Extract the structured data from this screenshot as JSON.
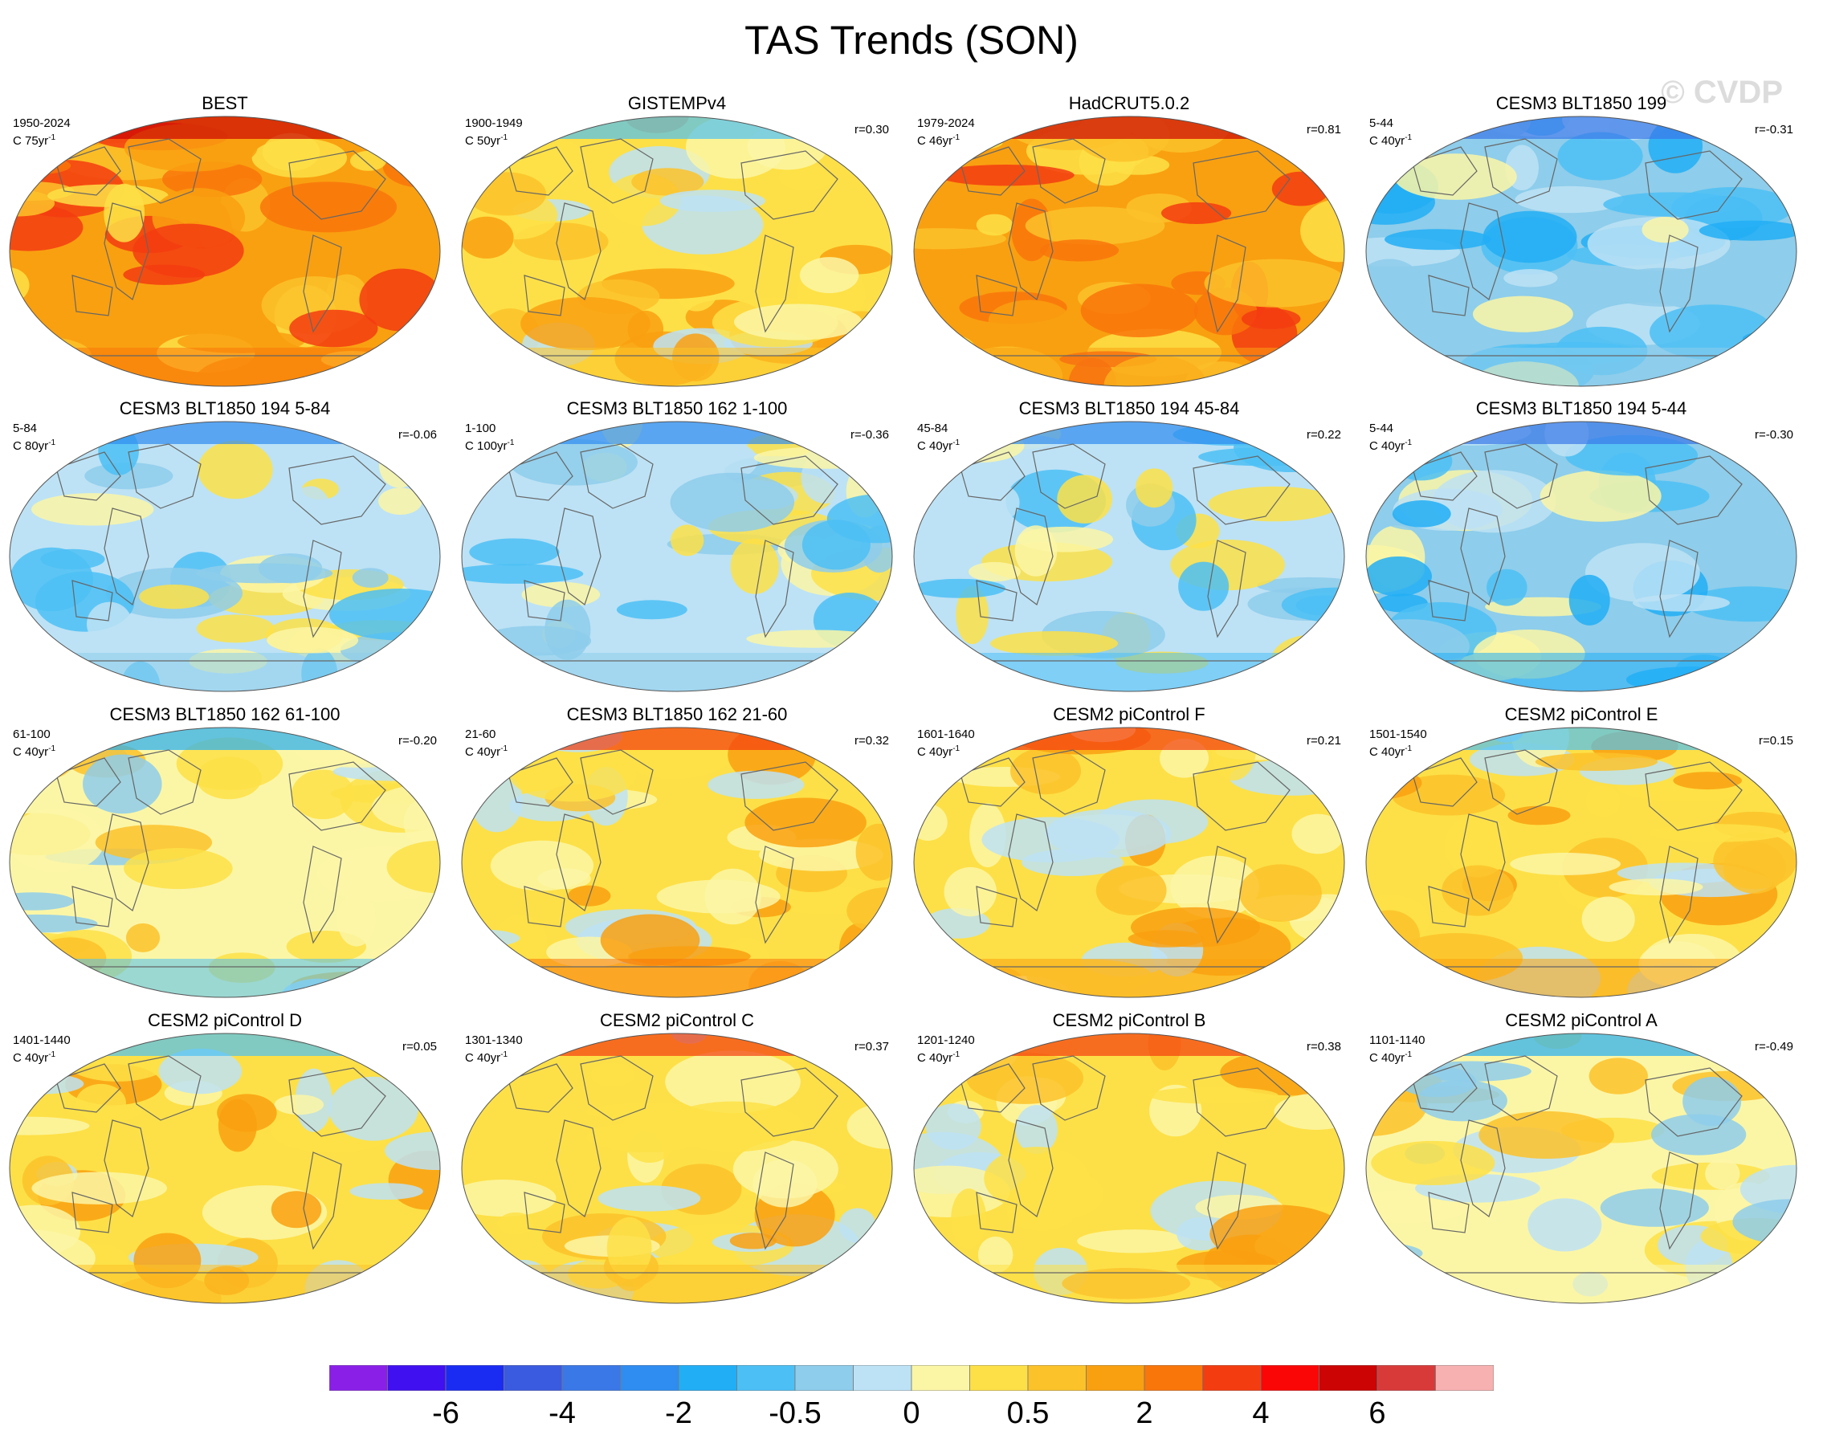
{
  "title": "TAS Trends (SON)",
  "watermark": "© CVDP",
  "panels": [
    {
      "title": "BEST",
      "period": "1950-2024",
      "units_prefix": "C 75yr",
      "units_sup": "-1",
      "corr": "",
      "warm": 0.9
    },
    {
      "title": "GISTEMPv4",
      "period": "1900-1949",
      "units_prefix": "C 50yr",
      "units_sup": "-1",
      "corr": "r=0.30",
      "warm": 0.5
    },
    {
      "title": "HadCRUT5.0.2",
      "period": "1979-2024",
      "units_prefix": "C 46yr",
      "units_sup": "-1",
      "corr": "r=0.81",
      "warm": 0.85
    },
    {
      "title": "CESM3 BLT1850 199",
      "period": "5-44",
      "units_prefix": "C 40yr",
      "units_sup": "-1",
      "corr": "r=-0.31",
      "warm": 0.15
    },
    {
      "title": "CESM3 BLT1850 194 5-84",
      "period": "5-84",
      "units_prefix": "C 80yr",
      "units_sup": "-1",
      "corr": "r=-0.06",
      "warm": 0.25
    },
    {
      "title": "CESM3 BLT1850 162 1-100",
      "period": "1-100",
      "units_prefix": "C 100yr",
      "units_sup": "-1",
      "corr": "r=-0.36",
      "warm": 0.3
    },
    {
      "title": "CESM3 BLT1850 194 45-84",
      "period": "45-84",
      "units_prefix": "C 40yr",
      "units_sup": "-1",
      "corr": "r=0.22",
      "warm": 0.3
    },
    {
      "title": "CESM3 BLT1850 194 5-44",
      "period": "5-44",
      "units_prefix": "C 40yr",
      "units_sup": "-1",
      "corr": "r=-0.30",
      "warm": 0.12
    },
    {
      "title": "CESM3 BLT1850 162 61-100",
      "period": "61-100",
      "units_prefix": "C 40yr",
      "units_sup": "-1",
      "corr": "r=-0.20",
      "warm": 0.45
    },
    {
      "title": "CESM3 BLT1850 162 21-60",
      "period": "21-60",
      "units_prefix": "C 40yr",
      "units_sup": "-1",
      "corr": "r=0.32",
      "warm": 0.55
    },
    {
      "title": "CESM2 piControl F",
      "period": "1601-1640",
      "units_prefix": "C 40yr",
      "units_sup": "-1",
      "corr": "r=0.21",
      "warm": 0.55
    },
    {
      "title": "CESM2 piControl E",
      "period": "1501-1540",
      "units_prefix": "C 40yr",
      "units_sup": "-1",
      "corr": "r=0.15",
      "warm": 0.5
    },
    {
      "title": "CESM2 piControl D",
      "period": "1401-1440",
      "units_prefix": "C 40yr",
      "units_sup": "-1",
      "corr": "r=0.05",
      "warm": 0.5
    },
    {
      "title": "CESM2 piControl C",
      "period": "1301-1340",
      "units_prefix": "C 40yr",
      "units_sup": "-1",
      "corr": "r=0.37",
      "warm": 0.6
    },
    {
      "title": "CESM2 piControl B",
      "period": "1201-1240",
      "units_prefix": "C 40yr",
      "units_sup": "-1",
      "corr": "r=0.38",
      "warm": 0.6
    },
    {
      "title": "CESM2 piControl A",
      "period": "1101-1140",
      "units_prefix": "C 40yr",
      "units_sup": "-1",
      "corr": "r=-0.49",
      "warm": 0.4
    }
  ],
  "colorbar": {
    "colors": [
      "#8a1fe8",
      "#4010f0",
      "#1a2cf2",
      "#3a5ae0",
      "#3a78e8",
      "#2f8cf0",
      "#22aef5",
      "#4cc0f5",
      "#8ecdeb",
      "#bde2f5",
      "#fbf6a6",
      "#fde047",
      "#fbc22a",
      "#f9a010",
      "#f9760a",
      "#f33c10",
      "#fb0606",
      "#cc0404",
      "#d83a3a",
      "#f8b1b1"
    ],
    "tick_labels": [
      "-6",
      "-4",
      "-2",
      "-0.5",
      "0",
      "0.5",
      "2",
      "4",
      "6"
    ],
    "tick_boundaries": [
      2,
      4,
      6,
      8,
      10,
      12,
      14,
      16,
      18
    ]
  }
}
